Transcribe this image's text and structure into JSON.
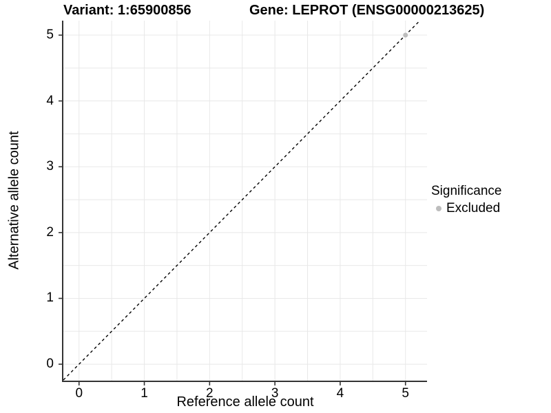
{
  "titles": {
    "left": "Variant: 1:65900856",
    "right": "Gene: LEPROT (ENSG00000213625)"
  },
  "chart_data": {
    "type": "scatter",
    "xlabel": "Reference allele count",
    "ylabel": "Alternative allele count",
    "x_ticks": [
      0,
      1,
      2,
      3,
      4,
      5
    ],
    "y_ticks": [
      0,
      1,
      2,
      3,
      4,
      5
    ],
    "xlim": [
      -0.24,
      5.33
    ],
    "ylim": [
      -0.25,
      5.22
    ],
    "grid": {
      "show": true,
      "step": 0.5,
      "color": "#e8e8e8"
    },
    "reference_line": {
      "type": "identity",
      "slope": 1,
      "intercept": 0,
      "style": "dashed",
      "color": "#000000"
    },
    "series": [
      {
        "name": "Excluded",
        "color": "#bdbdbd",
        "points": [
          {
            "x": 5,
            "y": 5
          }
        ]
      }
    ],
    "legend": {
      "title": "Significance",
      "position": "right",
      "entries": [
        {
          "label": "Excluded",
          "color": "#bdbdbd"
        }
      ]
    }
  },
  "style": {
    "axis_line_color": "#333333",
    "tick_mark_color": "#333333",
    "background": "#ffffff"
  }
}
